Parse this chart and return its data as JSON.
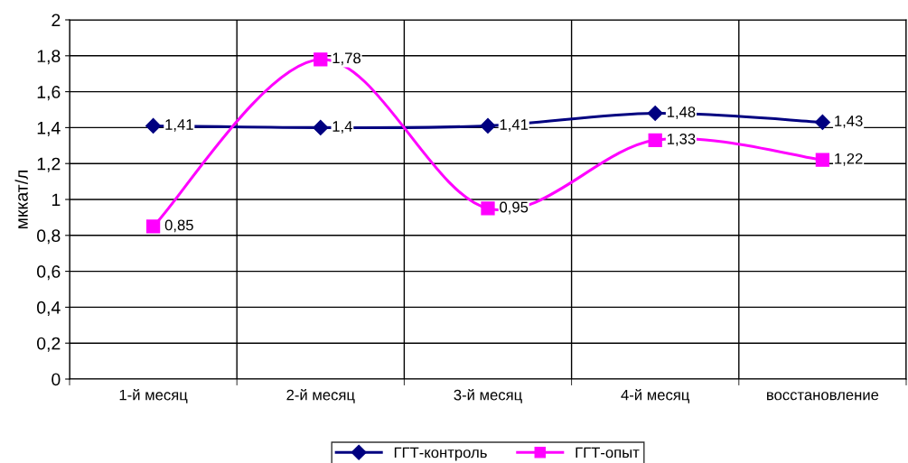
{
  "chart_data": {
    "type": "line",
    "ylabel": "мккат/л",
    "categories": [
      "1-й месяц",
      "2-й месяц",
      "3-й месяц",
      "4-й месяц",
      "восстановление"
    ],
    "series": [
      {
        "name": "ГГТ-контроль",
        "color": "#000080",
        "marker": "diamond",
        "values": [
          1.41,
          1.4,
          1.41,
          1.48,
          1.43
        ],
        "value_labels": [
          "1,41",
          "1,4",
          "1,41",
          "1,48",
          "1,43"
        ]
      },
      {
        "name": "ГГТ-опыт",
        "color": "#ff00ff",
        "marker": "square",
        "values": [
          0.85,
          1.78,
          0.95,
          1.33,
          1.22
        ],
        "value_labels": [
          "0,85",
          "1,78",
          "0,95",
          "1,33",
          "1,22"
        ]
      }
    ],
    "ylim": [
      0,
      2
    ],
    "yticks": [
      0,
      {
        "value": 0.2,
        "label": "0,2"
      },
      {
        "value": 0.4,
        "label": "0,4"
      },
      {
        "value": 0.6,
        "label": "0,6"
      },
      {
        "value": 0.8,
        "label": "0,8"
      },
      1,
      {
        "value": 1.2,
        "label": "1,2"
      },
      {
        "value": 1.4,
        "label": "1,4"
      },
      {
        "value": 1.6,
        "label": "1,6"
      },
      {
        "value": 1.8,
        "label": "1,8"
      },
      2
    ],
    "grid": true,
    "legend": "bottom",
    "line_style": "solid"
  }
}
